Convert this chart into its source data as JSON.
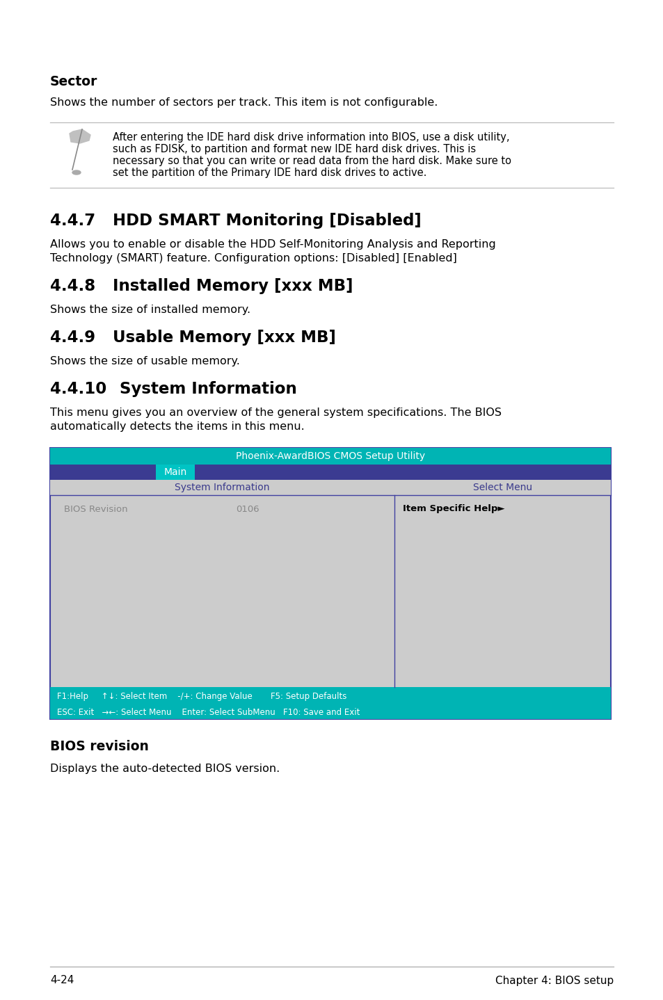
{
  "bg_color": "#ffffff",
  "section_heading_color": "#000000",
  "body_text_color": "#000000",
  "note_text_color": "#000000",
  "bios_teal": "#00B4B4",
  "bios_blue_dark": "#3A3A8C",
  "bios_teal_tab": "#00C4C4",
  "bios_cell_bg": "#C8C8C8",
  "bios_cell_text_blue": "#3A3A8C",
  "footer_line_color": "#AAAAAA",
  "footer_text_color": "#000000",
  "separator_color": "#BBBBBB",
  "sector_heading": "Sector",
  "sector_body": "Shows the number of sectors per track. This item is not configurable.",
  "note_text_line1": "After entering the IDE hard disk drive information into BIOS, use a disk utility,",
  "note_text_line2": "such as FDISK, to partition and format new IDE hard disk drives. This is",
  "note_text_line3": "necessary so that you can write or read data from the hard disk. Make sure to",
  "note_text_line4": "set the partition of the Primary IDE hard disk drives to active.",
  "s447_num": "4.4.7",
  "s447_title": "HDD SMART Monitoring [Disabled]",
  "s447_body_l1": "Allows you to enable or disable the HDD Self-Monitoring Analysis and Reporting",
  "s447_body_l2": "Technology (SMART) feature. Configuration options: [Disabled] [Enabled]",
  "s448_num": "4.4.8",
  "s448_title": "Installed Memory [xxx MB]",
  "s448_body": "Shows the size of installed memory.",
  "s449_num": "4.4.9",
  "s449_title": "Usable Memory [xxx MB]",
  "s449_body": "Shows the size of usable memory.",
  "s4410_num": "4.4.10",
  "s4410_title": "System Information",
  "s4410_body_l1": "This menu gives you an overview of the general system specifications. The BIOS",
  "s4410_body_l2": "automatically detects the items in this menu.",
  "bios_title_bar": "Phoenix-AwardBIOS CMOS Setup Utility",
  "bios_menu_item": "Main",
  "bios_col1_header": "System Information",
  "bios_col2_header": "Select Menu",
  "bios_row1_col1": "BIOS Revision",
  "bios_row1_val": "0106",
  "bios_row1_col2": "Item Specific Help►",
  "bios_footer_line1": "F1:Help     ↑↓: Select Item    -/+: Change Value       F5: Setup Defaults",
  "bios_footer_line2": "ESC: Exit   →←: Select Menu    Enter: Select SubMenu   F10: Save and Exit",
  "bios_revision_heading": "BIOS revision",
  "bios_revision_body": "Displays the auto-detected BIOS version.",
  "footer_left": "4-24",
  "footer_right": "Chapter 4: BIOS setup"
}
